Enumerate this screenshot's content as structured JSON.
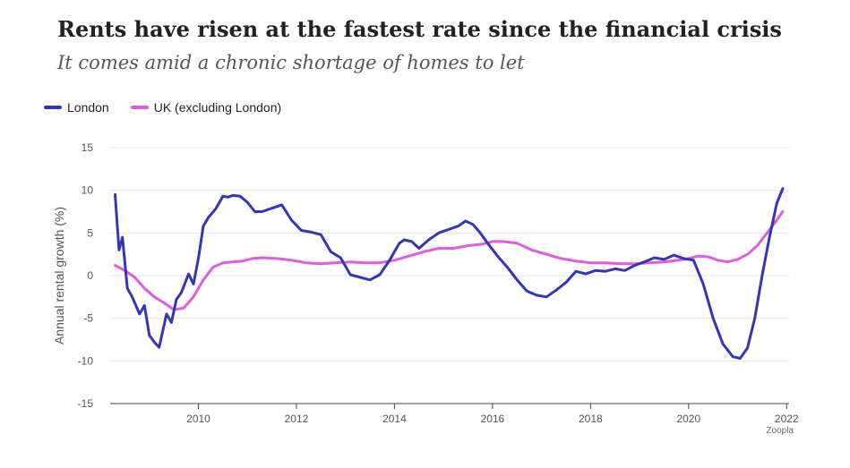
{
  "title": "Rents have risen at the fastest rate since the financial crisis",
  "subtitle": "It comes amid a chronic shortage of homes to let",
  "source": "Zoopla",
  "chart_data": {
    "type": "line",
    "ylabel": "Annual rental growth (%)",
    "xlabel": "",
    "ylim": [
      -15,
      15
    ],
    "xlim": [
      2008.2,
      2022.05
    ],
    "yticks": [
      -15,
      -10,
      -5,
      0,
      5,
      10,
      15
    ],
    "xticks": [
      2010,
      2012,
      2014,
      2016,
      2018,
      2020,
      2022
    ],
    "ytick_labels": [
      "-15",
      "-10",
      "-5",
      "0",
      "5",
      "10",
      "15"
    ],
    "xtick_labels": [
      "2010",
      "2012",
      "2014",
      "2016",
      "2018",
      "2020",
      "2022"
    ],
    "grid": true,
    "legend_position": "top-left",
    "series": [
      {
        "name": "London",
        "color": "#3535b8",
        "x": [
          2008.3,
          2008.38,
          2008.45,
          2008.55,
          2008.65,
          2008.8,
          2008.9,
          2009.0,
          2009.1,
          2009.2,
          2009.35,
          2009.45,
          2009.55,
          2009.65,
          2009.8,
          2009.9,
          2010.0,
          2010.1,
          2010.2,
          2010.35,
          2010.5,
          2010.6,
          2010.7,
          2010.85,
          2011.0,
          2011.15,
          2011.3,
          2011.5,
          2011.7,
          2011.9,
          2012.1,
          2012.3,
          2012.5,
          2012.7,
          2012.9,
          2013.1,
          2013.3,
          2013.5,
          2013.7,
          2013.9,
          2014.1,
          2014.2,
          2014.35,
          2014.5,
          2014.7,
          2014.9,
          2015.1,
          2015.3,
          2015.45,
          2015.6,
          2015.75,
          2015.9,
          2016.1,
          2016.3,
          2016.5,
          2016.7,
          2016.9,
          2017.1,
          2017.3,
          2017.5,
          2017.7,
          2017.9,
          2018.1,
          2018.3,
          2018.5,
          2018.7,
          2018.9,
          2019.1,
          2019.3,
          2019.5,
          2019.7,
          2019.9,
          2020.1,
          2020.3,
          2020.5,
          2020.7,
          2020.9,
          2021.05,
          2021.2,
          2021.35,
          2021.5,
          2021.65,
          2021.8,
          2021.92
        ],
        "values": [
          9.5,
          3.0,
          4.5,
          -1.5,
          -2.5,
          -4.5,
          -3.5,
          -7.0,
          -7.8,
          -8.4,
          -4.5,
          -5.5,
          -2.8,
          -2.0,
          0.2,
          -1.0,
          2.0,
          5.8,
          6.8,
          7.8,
          9.3,
          9.2,
          9.4,
          9.3,
          8.6,
          7.5,
          7.5,
          7.9,
          8.3,
          6.5,
          5.3,
          5.1,
          4.8,
          2.8,
          2.1,
          0.1,
          -0.2,
          -0.5,
          0.1,
          1.8,
          3.8,
          4.2,
          4.0,
          3.2,
          4.2,
          5.0,
          5.4,
          5.8,
          6.4,
          6.0,
          5.0,
          3.8,
          2.3,
          1.0,
          -0.5,
          -1.8,
          -2.3,
          -2.5,
          -1.7,
          -0.8,
          0.5,
          0.2,
          0.6,
          0.5,
          0.8,
          0.6,
          1.2,
          1.6,
          2.1,
          1.9,
          2.4,
          2.0,
          1.8,
          -1.0,
          -5.0,
          -8.0,
          -9.5,
          -9.7,
          -8.5,
          -5.0,
          0.0,
          4.5,
          8.5,
          10.2
        ]
      },
      {
        "name": "UK (excluding London)",
        "color": "#e15ce1",
        "x": [
          2008.3,
          2008.5,
          2008.7,
          2008.9,
          2009.1,
          2009.3,
          2009.5,
          2009.7,
          2009.9,
          2010.1,
          2010.3,
          2010.5,
          2010.7,
          2010.9,
          2011.1,
          2011.3,
          2011.6,
          2011.9,
          2012.2,
          2012.5,
          2012.8,
          2013.1,
          2013.4,
          2013.7,
          2014.0,
          2014.3,
          2014.6,
          2014.9,
          2015.2,
          2015.5,
          2015.8,
          2016.0,
          2016.2,
          2016.5,
          2016.8,
          2017.1,
          2017.4,
          2017.7,
          2018.0,
          2018.3,
          2018.6,
          2018.9,
          2019.2,
          2019.5,
          2019.8,
          2020.0,
          2020.2,
          2020.4,
          2020.6,
          2020.8,
          2021.0,
          2021.2,
          2021.4,
          2021.6,
          2021.8,
          2021.92
        ],
        "values": [
          1.2,
          0.6,
          -0.2,
          -1.5,
          -2.5,
          -3.2,
          -4.0,
          -3.8,
          -2.5,
          -0.5,
          1.0,
          1.5,
          1.6,
          1.7,
          2.0,
          2.1,
          2.0,
          1.8,
          1.5,
          1.4,
          1.5,
          1.6,
          1.5,
          1.5,
          1.8,
          2.3,
          2.8,
          3.2,
          3.2,
          3.5,
          3.7,
          4.0,
          4.0,
          3.8,
          3.0,
          2.5,
          2.0,
          1.7,
          1.5,
          1.5,
          1.4,
          1.4,
          1.5,
          1.6,
          1.8,
          2.0,
          2.3,
          2.2,
          1.8,
          1.6,
          1.9,
          2.5,
          3.5,
          5.0,
          6.5,
          7.5
        ]
      }
    ]
  }
}
